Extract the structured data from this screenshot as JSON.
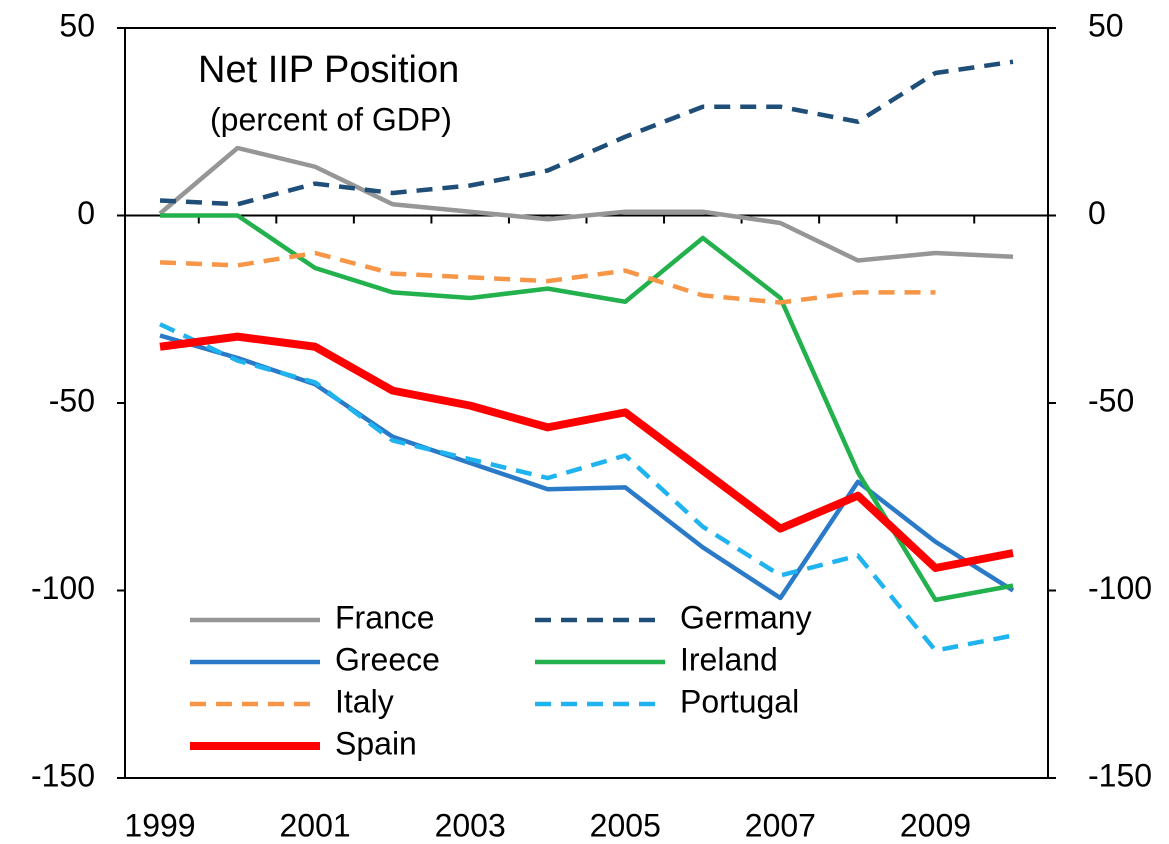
{
  "chart_data": {
    "type": "line",
    "title": "Net IIP Position",
    "subtitle": "(percent of GDP)",
    "categories": [
      "1999",
      null,
      "2001",
      null,
      "2003",
      null,
      "2005",
      null,
      "2007",
      null,
      "2009",
      null
    ],
    "series": [
      {
        "name": "France",
        "color": "#969696",
        "dashed": false,
        "thick": false,
        "values": [
          0.5,
          18,
          13,
          3,
          1,
          -1,
          1,
          1,
          -2,
          -12,
          -10,
          -11
        ]
      },
      {
        "name": "Germany",
        "color": "#1f4e79",
        "dashed": true,
        "thick": false,
        "values": [
          4,
          3,
          8.5,
          6,
          8,
          12,
          21,
          29,
          29,
          25,
          38,
          41
        ]
      },
      {
        "name": "Greece",
        "color": "#2a7ac8",
        "dashed": false,
        "thick": false,
        "values": [
          -32,
          -38,
          -45,
          -59,
          -66,
          -73,
          -72.5,
          -88.5,
          -102,
          -71,
          -87,
          -100
        ]
      },
      {
        "name": "Ireland",
        "color": "#22b14c",
        "dashed": false,
        "thick": false,
        "values": [
          0,
          0,
          -14,
          -20.5,
          -22,
          -19.5,
          -23,
          -6,
          -22,
          -68.5,
          -102.5,
          -98.7
        ]
      },
      {
        "name": "Italy",
        "color": "#f79646",
        "dashed": true,
        "thick": false,
        "values": [
          -12.5,
          -13.3,
          -10,
          -15.5,
          -16.5,
          -17.5,
          -14.7,
          -21.3,
          -23.2,
          -20.5,
          -20.5,
          null
        ]
      },
      {
        "name": "Portugal",
        "color": "#1fb4f0",
        "dashed": true,
        "thick": false,
        "values": [
          -29,
          -38.7,
          -44.5,
          -60,
          -65,
          -70,
          -64,
          -83,
          -96,
          -90.7,
          -116,
          -112
        ]
      },
      {
        "name": "Spain",
        "color": "#ff0000",
        "dashed": false,
        "thick": true,
        "values": [
          -35,
          -32.3,
          -35,
          -46.7,
          -50.7,
          -56.5,
          -52.5,
          -68,
          -83.5,
          -74.7,
          -94,
          -90
        ]
      }
    ],
    "ylim": [
      -150,
      50
    ],
    "yticks": [
      50,
      0,
      -50,
      -100,
      -150
    ],
    "y2lim": [
      -150,
      50
    ],
    "y2ticks": [
      50,
      0,
      -50,
      -100,
      -150
    ],
    "grid": false,
    "legend": "lower left"
  }
}
